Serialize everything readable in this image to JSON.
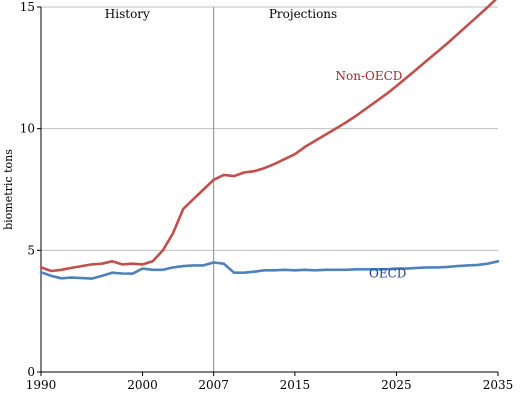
{
  "chart_data": {
    "type": "line",
    "ylabel": "biometric tons",
    "xlabel": "",
    "xlim": [
      1990,
      2035
    ],
    "ylim": [
      0,
      15
    ],
    "xticks": [
      1990,
      2000,
      2007,
      2015,
      2025,
      2035
    ],
    "yticks": [
      0,
      5,
      10,
      15
    ],
    "grid": "horizontal",
    "divider_year": 2007,
    "annotations": [
      {
        "text": "History",
        "x": 1998.5,
        "y": 14.55
      },
      {
        "text": "Projections",
        "x": 2015.8,
        "y": 14.55
      }
    ],
    "series": [
      {
        "name": "Non-OECD",
        "color": "#c0504d",
        "label_pos": {
          "x": 2019,
          "y": 12.0
        },
        "x": [
          1990,
          1991,
          1992,
          1993,
          1994,
          1995,
          1996,
          1997,
          1998,
          1999,
          2000,
          2001,
          2002,
          2003,
          2004,
          2005,
          2006,
          2007,
          2008,
          2009,
          2010,
          2011,
          2012,
          2013,
          2014,
          2015,
          2016,
          2017,
          2018,
          2019,
          2020,
          2021,
          2022,
          2023,
          2024,
          2025,
          2026,
          2027,
          2028,
          2029,
          2030,
          2031,
          2032,
          2033,
          2034,
          2035
        ],
        "values": [
          4.3,
          4.15,
          4.2,
          4.28,
          4.35,
          4.42,
          4.45,
          4.55,
          4.42,
          4.45,
          4.42,
          4.55,
          5.0,
          5.7,
          6.7,
          7.1,
          7.5,
          7.9,
          8.1,
          8.05,
          8.2,
          8.25,
          8.38,
          8.55,
          8.75,
          8.95,
          9.25,
          9.5,
          9.75,
          10.0,
          10.25,
          10.52,
          10.82,
          11.12,
          11.42,
          11.75,
          12.1,
          12.45,
          12.8,
          13.15,
          13.5,
          13.88,
          14.25,
          14.62,
          15.0,
          15.4
        ]
      },
      {
        "name": "OECD",
        "color": "#4f81bd",
        "label_pos": {
          "x": 2022.3,
          "y": 3.88
        },
        "x": [
          1990,
          1991,
          1992,
          1993,
          1994,
          1995,
          1996,
          1997,
          1998,
          1999,
          2000,
          2001,
          2002,
          2003,
          2004,
          2005,
          2006,
          2007,
          2008,
          2009,
          2010,
          2011,
          2012,
          2013,
          2014,
          2015,
          2016,
          2017,
          2018,
          2019,
          2020,
          2021,
          2022,
          2023,
          2024,
          2025,
          2026,
          2027,
          2028,
          2029,
          2030,
          2031,
          2032,
          2033,
          2034,
          2035
        ],
        "values": [
          4.1,
          3.95,
          3.85,
          3.88,
          3.86,
          3.84,
          3.95,
          4.08,
          4.05,
          4.04,
          4.25,
          4.2,
          4.2,
          4.3,
          4.35,
          4.38,
          4.38,
          4.5,
          4.45,
          4.08,
          4.08,
          4.12,
          4.18,
          4.18,
          4.2,
          4.18,
          4.2,
          4.18,
          4.2,
          4.2,
          4.2,
          4.22,
          4.22,
          4.22,
          4.22,
          4.25,
          4.25,
          4.28,
          4.3,
          4.3,
          4.32,
          4.35,
          4.38,
          4.4,
          4.45,
          4.55
        ]
      }
    ]
  }
}
